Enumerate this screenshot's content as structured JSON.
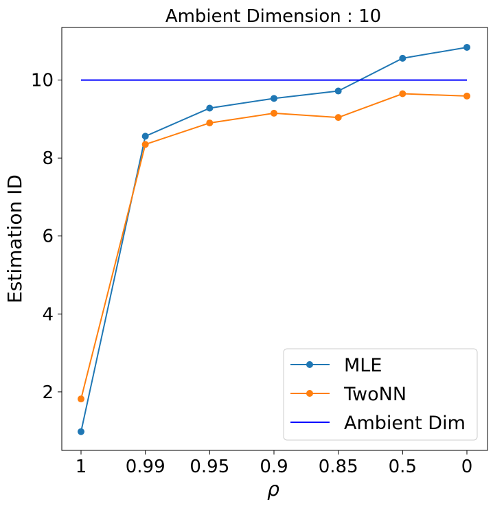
{
  "chart_data": {
    "type": "line",
    "title": "Ambient Dimension : 10",
    "xlabel": "ρ",
    "ylabel": "Estimation ID",
    "categories": [
      "1",
      "0.99",
      "0.95",
      "0.9",
      "0.85",
      "0.5",
      "0"
    ],
    "yticks": [
      2,
      4,
      6,
      8,
      10
    ],
    "ylim": [
      0.5,
      11.35
    ],
    "legend_position": "lower-right",
    "series": [
      {
        "name": "MLE",
        "color": "#1f77b4",
        "marker": "circle",
        "values": [
          0.98,
          8.56,
          9.28,
          9.53,
          9.72,
          10.56,
          10.84
        ]
      },
      {
        "name": "TwoNN",
        "color": "#ff7f0e",
        "marker": "circle",
        "values": [
          1.82,
          8.35,
          8.9,
          9.15,
          9.04,
          9.65,
          9.59
        ]
      },
      {
        "name": "Ambient Dim",
        "color": "#0000ff",
        "marker": "none",
        "values": [
          10,
          10,
          10,
          10,
          10,
          10,
          10
        ]
      }
    ]
  }
}
